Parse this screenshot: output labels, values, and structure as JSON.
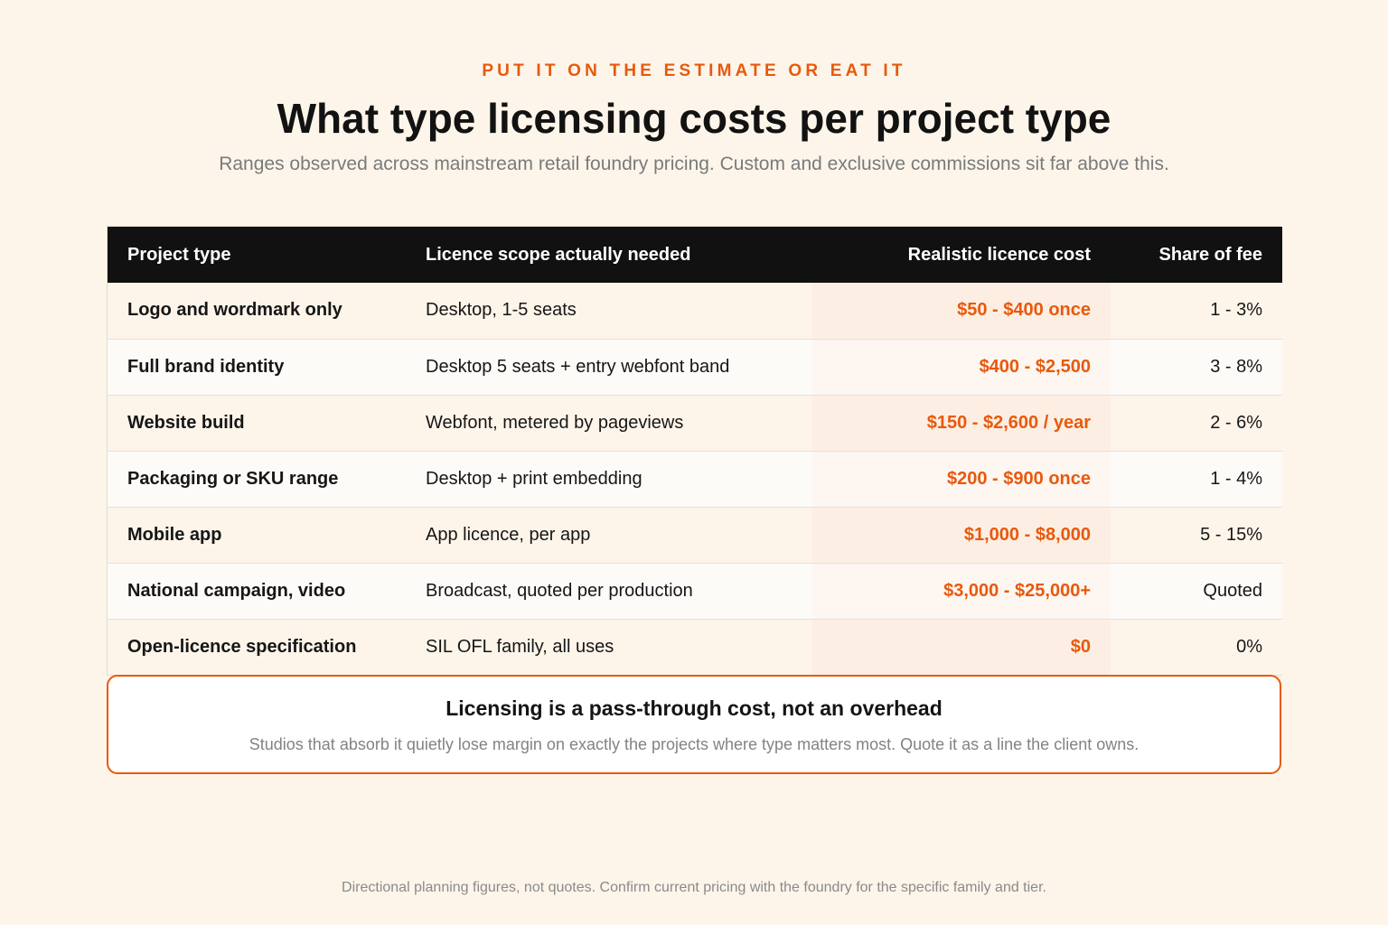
{
  "header": {
    "eyebrow": "PUT IT ON THE ESTIMATE OR EAT IT",
    "title": "What type licensing costs per project type",
    "subtitle": "Ranges observed across mainstream retail foundry pricing. Custom and exclusive commissions sit far above this."
  },
  "table": {
    "columns": [
      "Project type",
      "Licence scope actually needed",
      "Realistic licence cost",
      "Share of fee"
    ],
    "rows": [
      {
        "project_type": "Logo and wordmark only",
        "scope": "Desktop, 1-5 seats",
        "cost": "$50 - $400 once",
        "share": "1 - 3%"
      },
      {
        "project_type": "Full brand identity",
        "scope": "Desktop 5 seats + entry webfont band",
        "cost": "$400 - $2,500",
        "share": "3 - 8%"
      },
      {
        "project_type": "Website build",
        "scope": "Webfont, metered by pageviews",
        "cost": "$150 - $2,600 / year",
        "share": "2 - 6%"
      },
      {
        "project_type": "Packaging or SKU range",
        "scope": "Desktop + print embedding",
        "cost": "$200 - $900 once",
        "share": "1 - 4%"
      },
      {
        "project_type": "Mobile app",
        "scope": "App licence, per app",
        "cost": "$1,000 - $8,000",
        "share": "5 - 15%"
      },
      {
        "project_type": "National campaign, video",
        "scope": "Broadcast, quoted per production",
        "cost": "$3,000 - $25,000+",
        "share": "Quoted"
      },
      {
        "project_type": "Open-licence specification",
        "scope": "SIL OFL family, all uses",
        "cost": "$0",
        "share": "0%"
      }
    ]
  },
  "callout": {
    "title": "Licensing is a pass-through cost, not an overhead",
    "body": "Studios that absorb it quietly lose margin on exactly the projects where type matters most. Quote it as a line the client owns."
  },
  "footnote": "Directional planning figures, not quotes. Confirm current pricing with the foundry for the specific family and tier.",
  "colors": {
    "accent": "#e8590c",
    "background": "#fdf5ea",
    "header_bg": "#111111"
  }
}
